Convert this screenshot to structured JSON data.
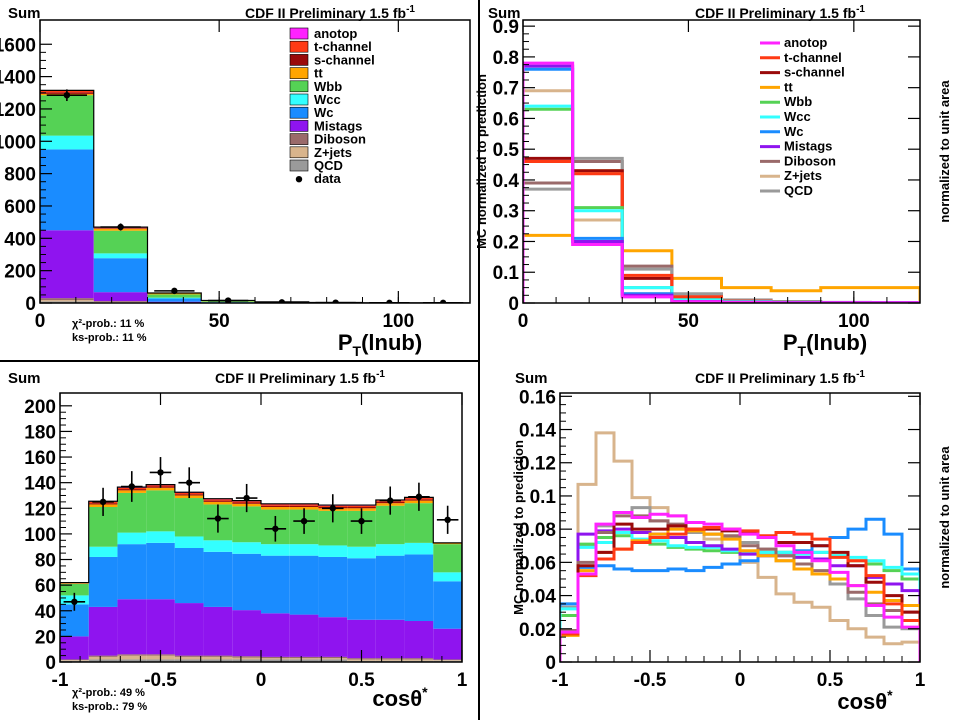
{
  "colors": {
    "anotop": "#ff22ff",
    "t-channel": "#ff3a14",
    "s-channel": "#9a0a0a",
    "tt": "#ffa500",
    "Wbb": "#55d255",
    "Wcc": "#33ffff",
    "Wc": "#1a8cff",
    "Mistags": "#8f14ef",
    "Diboson": "#9a6a6a",
    "Z+jets": "#d8b48c",
    "QCD": "#9a9a9a",
    "data": "#000000"
  },
  "chart_data": [
    {
      "type": "bar",
      "stacked": true,
      "title": "CDF II Preliminary 1.5 fb",
      "title_sup": "-1",
      "corner_label": "Sum",
      "xlabel": "P",
      "xlabel_sub": "T",
      "xlabel_suffix": "(lnub)",
      "ylabel": "",
      "xlim": [
        0,
        120
      ],
      "ylim": [
        0,
        1750
      ],
      "xticks": [
        0,
        50,
        100
      ],
      "yticks": [
        0,
        200,
        400,
        600,
        800,
        1000,
        1200,
        1400,
        1600
      ],
      "bin_edges": [
        0,
        15,
        30,
        45,
        60,
        75,
        90,
        105,
        120
      ],
      "legend": [
        "anotop",
        "t-channel",
        "s-channel",
        "tt",
        "Wbb",
        "Wcc",
        "Wc",
        "Mistags",
        "Diboson",
        "Z+jets",
        "QCD",
        "data"
      ],
      "legend_display": [
        "anotop",
        "t-channel",
        "s-channel",
        "tt",
        "Wbb",
        "Wcc",
        "Wc",
        "Mistags",
        "Diboson",
        "Z+jets",
        "QCD",
        "data"
      ],
      "legend_position": "top-right",
      "stack": [
        {
          "name": "QCD",
          "values": [
            10,
            4,
            1,
            0,
            0,
            0,
            0,
            0
          ]
        },
        {
          "name": "Z+jets",
          "values": [
            8,
            3,
            1,
            0,
            0,
            0,
            0,
            0
          ]
        },
        {
          "name": "Diboson",
          "values": [
            12,
            5,
            1,
            0,
            0,
            0,
            0,
            0
          ]
        },
        {
          "name": "Mistags",
          "values": [
            420,
            55,
            5,
            2,
            1,
            0,
            0,
            0
          ]
        },
        {
          "name": "Wc",
          "values": [
            500,
            210,
            20,
            3,
            1,
            0,
            0,
            0
          ]
        },
        {
          "name": "Wcc",
          "values": [
            85,
            30,
            5,
            1,
            0,
            0,
            0,
            0
          ]
        },
        {
          "name": "Wbb",
          "values": [
            250,
            140,
            20,
            5,
            2,
            1,
            0,
            0
          ]
        },
        {
          "name": "tt",
          "values": [
            8,
            12,
            6,
            5,
            3,
            2,
            1,
            1
          ]
        },
        {
          "name": "s-channel",
          "values": [
            10,
            4,
            1,
            0,
            0,
            0,
            0,
            0
          ]
        },
        {
          "name": "t-channel",
          "values": [
            8,
            3,
            1,
            0,
            0,
            0,
            0,
            0
          ]
        },
        {
          "name": "anotop",
          "values": [
            4,
            3,
            1,
            0,
            0,
            0,
            0,
            0
          ]
        }
      ],
      "data_points": [
        {
          "x": 7.5,
          "y": 1285,
          "err": 36
        },
        {
          "x": 22.5,
          "y": 470,
          "err": 22
        },
        {
          "x": 37.5,
          "y": 75,
          "err": 9
        },
        {
          "x": 52.5,
          "y": 15,
          "err": 4
        },
        {
          "x": 67.5,
          "y": 4,
          "err": 2
        },
        {
          "x": 82.5,
          "y": 2,
          "err": 1
        },
        {
          "x": 97.5,
          "y": 1,
          "err": 1
        },
        {
          "x": 112.5,
          "y": 1,
          "err": 1
        }
      ],
      "annotations": [
        "χ²-prob.: 11 %",
        "ks-prob.: 11 %"
      ]
    },
    {
      "type": "line",
      "step": true,
      "title": "CDF II Preliminary 1.5 fb",
      "title_sup": "-1",
      "corner_label": "Sum",
      "xlabel": "P",
      "xlabel_sub": "T",
      "xlabel_suffix": "(lnub)",
      "ylabel": "MC normalized to prediction",
      "ylabel_right": "normalized to unit area",
      "xlim": [
        0,
        120
      ],
      "ylim": [
        0,
        0.92
      ],
      "xticks": [
        0,
        50,
        100
      ],
      "yticks": [
        0,
        0.1,
        0.2,
        0.3,
        0.4,
        0.5,
        0.6,
        0.7,
        0.8,
        0.9
      ],
      "bin_edges": [
        0,
        15,
        30,
        45,
        60,
        75,
        90,
        105,
        120
      ],
      "legend": [
        "anotop",
        "t-channel",
        "s-channel",
        "tt",
        "Wbb",
        "Wcc",
        "Wc",
        "Mistags",
        "Diboson",
        "Z+jets",
        "QCD"
      ],
      "legend_display": [
        "anotop",
        "t-channel",
        "s-channel",
        "tt",
        "Wbb",
        "Wcc",
        "Wc",
        "Mistags",
        "Diboson",
        "Z+jets",
        "QCD"
      ],
      "legend_position": "top-right",
      "series": [
        {
          "name": "tt",
          "values": [
            0.22,
            0.43,
            0.17,
            0.08,
            0.05,
            0.04,
            0.05,
            0.05
          ]
        },
        {
          "name": "Diboson",
          "values": [
            0.39,
            0.46,
            0.12,
            0.02,
            0.005,
            0.002,
            0.001,
            0.001
          ]
        },
        {
          "name": "Z+jets",
          "values": [
            0.69,
            0.27,
            0.03,
            0.005,
            0.002,
            0.001,
            0.001,
            0.001
          ]
        },
        {
          "name": "QCD",
          "values": [
            0.37,
            0.47,
            0.11,
            0.03,
            0.01,
            0.005,
            0.002,
            0.001
          ]
        },
        {
          "name": "s-channel",
          "values": [
            0.47,
            0.43,
            0.08,
            0.02,
            0.005,
            0.002,
            0.001,
            0.001
          ]
        },
        {
          "name": "t-channel",
          "values": [
            0.46,
            0.42,
            0.09,
            0.02,
            0.006,
            0.002,
            0.001,
            0.001
          ]
        },
        {
          "name": "Wbb",
          "values": [
            0.63,
            0.31,
            0.05,
            0.01,
            0.004,
            0.002,
            0.001,
            0.001
          ]
        },
        {
          "name": "Wcc",
          "values": [
            0.64,
            0.3,
            0.05,
            0.01,
            0.004,
            0.002,
            0.001,
            0.001
          ]
        },
        {
          "name": "Wc",
          "values": [
            0.76,
            0.21,
            0.03,
            0.005,
            0.002,
            0.001,
            0.001,
            0.001
          ]
        },
        {
          "name": "Mistags",
          "values": [
            0.77,
            0.2,
            0.025,
            0.005,
            0.002,
            0.001,
            0.001,
            0.001
          ]
        },
        {
          "name": "anotop",
          "values": [
            0.78,
            0.19,
            0.02,
            0.004,
            0.002,
            0.001,
            0.001,
            0.001
          ]
        }
      ]
    },
    {
      "type": "bar",
      "stacked": true,
      "title": "CDF II Preliminary 1.5 fb",
      "title_sup": "-1",
      "corner_label": "Sum",
      "xlabel": "cosθ",
      "xlabel_sup": "*",
      "ylabel": "",
      "xlim": [
        -1,
        1
      ],
      "ylim": [
        0,
        210
      ],
      "xticks": [
        -1,
        -0.5,
        0,
        0.5,
        1
      ],
      "yticks": [
        0,
        20,
        40,
        60,
        80,
        100,
        120,
        140,
        160,
        180,
        200
      ],
      "bin_edges": [
        -1,
        -0.85714,
        -0.71429,
        -0.57143,
        -0.42857,
        -0.28571,
        -0.14286,
        0,
        0.14286,
        0.28571,
        0.42857,
        0.57143,
        0.71429,
        0.85714,
        1
      ],
      "stack": [
        {
          "name": "QCD",
          "values": [
            1,
            2,
            2,
            2,
            2,
            2,
            2,
            2,
            2,
            2,
            1,
            1,
            1,
            1
          ]
        },
        {
          "name": "Z+jets",
          "values": [
            0.5,
            2,
            3,
            3,
            2,
            2,
            1.5,
            1,
            1,
            1,
            1,
            1,
            1,
            0.5
          ]
        },
        {
          "name": "Diboson",
          "values": [
            0.5,
            1,
            1,
            1,
            1,
            1,
            1,
            1,
            1,
            1,
            1,
            1,
            1,
            0.5
          ]
        },
        {
          "name": "Mistags",
          "values": [
            18,
            38,
            43,
            43,
            41,
            38,
            36,
            34,
            33,
            31,
            30,
            30,
            29,
            24
          ]
        },
        {
          "name": "Wc",
          "values": [
            25,
            39,
            43,
            44,
            43,
            43,
            44,
            45,
            46,
            47,
            48,
            50,
            52,
            37
          ]
        },
        {
          "name": "Wcc",
          "values": [
            7,
            8,
            9,
            9,
            9,
            9,
            9,
            9,
            9,
            9,
            9,
            9,
            9,
            7
          ]
        },
        {
          "name": "Wbb",
          "values": [
            9,
            31,
            31,
            32,
            30,
            28,
            28,
            27,
            27,
            27,
            28,
            30,
            31,
            22
          ]
        },
        {
          "name": "tt",
          "values": [
            0.5,
            2,
            2,
            2,
            2,
            2,
            2,
            2,
            2,
            2,
            2,
            2,
            2,
            0.5
          ]
        },
        {
          "name": "s-channel",
          "values": [
            0.2,
            1,
            1,
            1,
            1,
            1,
            1,
            1,
            1,
            1,
            1,
            1,
            1,
            0.2
          ]
        },
        {
          "name": "t-channel",
          "values": [
            0.2,
            1,
            1,
            1,
            1,
            1,
            1,
            1,
            1,
            1,
            1,
            1,
            1,
            0.2
          ]
        },
        {
          "name": "anotop",
          "values": [
            0.1,
            0.5,
            0.5,
            0.5,
            0.5,
            0.5,
            0.5,
            0.5,
            0.5,
            0.5,
            0.5,
            0.5,
            0.5,
            0.1
          ]
        }
      ],
      "data_points": [
        {
          "x": -0.9286,
          "y": 47,
          "err": 7
        },
        {
          "x": -0.7857,
          "y": 125,
          "err": 11
        },
        {
          "x": -0.6429,
          "y": 137,
          "err": 12
        },
        {
          "x": -0.5,
          "y": 148,
          "err": 12
        },
        {
          "x": -0.3571,
          "y": 140,
          "err": 12
        },
        {
          "x": -0.2143,
          "y": 112,
          "err": 11
        },
        {
          "x": -0.0714,
          "y": 128,
          "err": 11
        },
        {
          "x": 0.0714,
          "y": 104,
          "err": 10
        },
        {
          "x": 0.2143,
          "y": 110,
          "err": 10
        },
        {
          "x": 0.3571,
          "y": 120,
          "err": 11
        },
        {
          "x": 0.5,
          "y": 110,
          "err": 10
        },
        {
          "x": 0.6429,
          "y": 126,
          "err": 11
        },
        {
          "x": 0.7857,
          "y": 129,
          "err": 11
        },
        {
          "x": 0.9286,
          "y": 111,
          "err": 11
        }
      ],
      "annotations": [
        "χ²-prob.: 49 %",
        "ks-prob.: 79 %"
      ]
    },
    {
      "type": "line",
      "step": true,
      "title": "CDF II Preliminary 1.5 fb",
      "title_sup": "-1",
      "corner_label": "Sum",
      "xlabel": "cosθ",
      "xlabel_sup": "*",
      "ylabel": "MC normalized to prediction",
      "ylabel_right": "normalized to unit area",
      "xlim": [
        -1,
        1
      ],
      "ylim": [
        0,
        0.162
      ],
      "xticks": [
        -1,
        -0.5,
        0,
        0.5,
        1
      ],
      "yticks": [
        0,
        0.02,
        0.04,
        0.06,
        0.08,
        0.1,
        0.12,
        0.14,
        0.16
      ],
      "bin_edges": [
        -1,
        -0.9,
        -0.8,
        -0.7,
        -0.6,
        -0.5,
        -0.4,
        -0.3,
        -0.2,
        -0.1,
        0,
        0.1,
        0.2,
        0.3,
        0.4,
        0.5,
        0.6,
        0.7,
        0.8,
        0.9,
        1
      ],
      "series": [
        {
          "name": "Z+jets",
          "values": [
            0.035,
            0.107,
            0.138,
            0.121,
            0.099,
            0.093,
            0.088,
            0.078,
            0.074,
            0.067,
            0.06,
            0.051,
            0.041,
            0.036,
            0.033,
            0.025,
            0.02,
            0.015,
            0.011,
            0.012
          ]
        },
        {
          "name": "QCD",
          "values": [
            0.033,
            0.07,
            0.082,
            0.09,
            0.093,
            0.085,
            0.08,
            0.078,
            0.077,
            0.075,
            0.072,
            0.068,
            0.061,
            0.056,
            0.053,
            0.047,
            0.038,
            0.028,
            0.021,
            0.02
          ]
        },
        {
          "name": "Wc",
          "values": [
            0.035,
            0.057,
            0.058,
            0.056,
            0.055,
            0.055,
            0.056,
            0.055,
            0.057,
            0.059,
            0.061,
            0.064,
            0.066,
            0.067,
            0.07,
            0.075,
            0.08,
            0.086,
            0.077,
            0.056
          ]
        },
        {
          "name": "Wbb",
          "values": [
            0.028,
            0.071,
            0.075,
            0.076,
            0.073,
            0.071,
            0.069,
            0.068,
            0.067,
            0.066,
            0.066,
            0.066,
            0.066,
            0.066,
            0.066,
            0.064,
            0.061,
            0.059,
            0.055,
            0.05
          ]
        },
        {
          "name": "Wcc",
          "values": [
            0.032,
            0.069,
            0.072,
            0.078,
            0.074,
            0.073,
            0.07,
            0.069,
            0.069,
            0.067,
            0.066,
            0.066,
            0.066,
            0.065,
            0.066,
            0.064,
            0.063,
            0.061,
            0.057,
            0.053
          ]
        },
        {
          "name": "Mistags",
          "values": [
            0.018,
            0.077,
            0.079,
            0.08,
            0.078,
            0.077,
            0.075,
            0.072,
            0.07,
            0.068,
            0.065,
            0.064,
            0.064,
            0.063,
            0.062,
            0.058,
            0.058,
            0.051,
            0.047,
            0.043
          ]
        },
        {
          "name": "Diboson",
          "values": [
            0.019,
            0.06,
            0.078,
            0.088,
            0.088,
            0.085,
            0.083,
            0.08,
            0.077,
            0.076,
            0.07,
            0.068,
            0.064,
            0.059,
            0.055,
            0.05,
            0.042,
            0.035,
            0.031,
            0.03
          ]
        },
        {
          "name": "tt",
          "values": [
            0.016,
            0.055,
            0.066,
            0.068,
            0.073,
            0.077,
            0.08,
            0.079,
            0.077,
            0.074,
            0.067,
            0.064,
            0.061,
            0.056,
            0.053,
            0.05,
            0.046,
            0.042,
            0.037,
            0.034
          ]
        },
        {
          "name": "s-channel",
          "values": [
            0.017,
            0.058,
            0.066,
            0.083,
            0.08,
            0.08,
            0.082,
            0.08,
            0.08,
            0.079,
            0.078,
            0.075,
            0.072,
            0.072,
            0.07,
            0.066,
            0.058,
            0.048,
            0.04,
            0.03
          ]
        },
        {
          "name": "t-channel",
          "values": [
            0.017,
            0.052,
            0.062,
            0.068,
            0.072,
            0.075,
            0.077,
            0.08,
            0.081,
            0.08,
            0.079,
            0.076,
            0.078,
            0.077,
            0.074,
            0.063,
            0.061,
            0.052,
            0.035,
            0.025
          ]
        },
        {
          "name": "anotop",
          "values": [
            0.018,
            0.053,
            0.083,
            0.09,
            0.087,
            0.089,
            0.088,
            0.084,
            0.083,
            0.08,
            0.077,
            0.075,
            0.07,
            0.066,
            0.061,
            0.054,
            0.046,
            0.034,
            0.027,
            0.021
          ]
        }
      ]
    }
  ]
}
